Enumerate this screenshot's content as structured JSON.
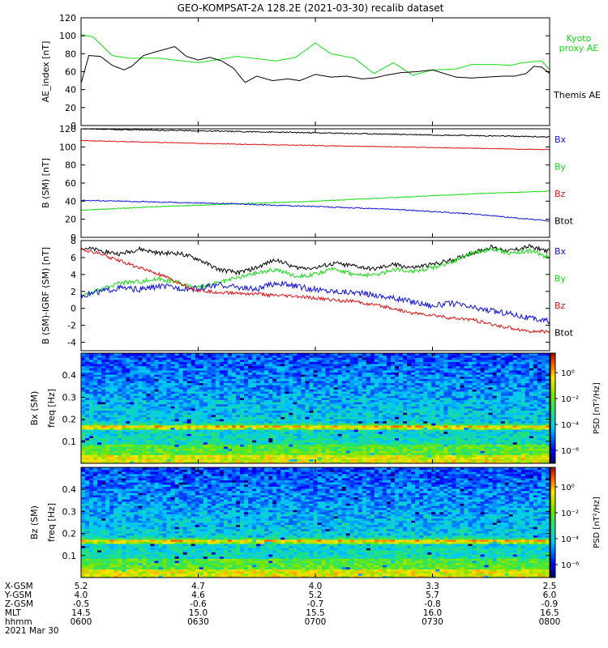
{
  "title": "GEO-KOMPSAT-2A 128.2E (2021-03-30) recalib dataset",
  "colors": {
    "black": "#000000",
    "red": "#e01010",
    "green": "#10dd10",
    "blue": "#1010dd"
  },
  "chart_data": [
    {
      "type": "line",
      "ylabel": "AE_index [nT]",
      "ylim": [
        0,
        120
      ],
      "yticks": [
        "0",
        "20",
        "40",
        "60",
        "80",
        "100",
        "120"
      ],
      "yvals": [
        0,
        20,
        40,
        60,
        80,
        100,
        120
      ],
      "legend": [
        {
          "lines": [
            "Kyoto",
            "proxy AE"
          ],
          "color": "#10dd10"
        },
        {
          "lines": [
            "Themis AE"
          ],
          "color": "#000000"
        }
      ],
      "series": [
        {
          "name": "Kyoto proxy AE",
          "color": "#10dd10",
          "x": [
            0,
            3,
            8,
            12,
            15,
            20,
            30,
            40,
            44,
            50,
            55,
            60,
            64,
            70,
            75,
            80,
            85,
            90,
            96,
            100,
            106,
            110,
            113,
            118,
            120
          ],
          "y": [
            101,
            99,
            78,
            75,
            75,
            75,
            70,
            77,
            75,
            72,
            76,
            92,
            80,
            75,
            58,
            70,
            56,
            62,
            63,
            68,
            68,
            67,
            70,
            72,
            62
          ]
        },
        {
          "name": "Themis AE",
          "color": "#000000",
          "x": [
            0,
            2,
            5,
            8,
            11,
            13,
            16,
            19,
            24,
            27,
            30,
            33,
            36,
            39,
            42,
            45,
            49,
            53,
            56,
            60,
            64,
            68,
            72,
            75,
            78,
            82,
            86,
            90,
            93,
            96,
            100,
            104,
            108,
            111,
            114,
            116,
            118,
            120
          ],
          "y": [
            47,
            78,
            77,
            67,
            62,
            66,
            78,
            82,
            88,
            77,
            73,
            76,
            72,
            64,
            48,
            55,
            50,
            52,
            50,
            57,
            54,
            55,
            52,
            53,
            56,
            59,
            60,
            62,
            58,
            54,
            53,
            54,
            55,
            55,
            58,
            66,
            65,
            58
          ]
        }
      ]
    },
    {
      "type": "line",
      "ylabel": "B (SM) [nT]",
      "ylim": [
        0,
        120
      ],
      "yticks": [
        "0",
        "20",
        "40",
        "60",
        "80",
        "100",
        "120"
      ],
      "yvals": [
        0,
        20,
        40,
        60,
        80,
        100,
        120
      ],
      "legend": [
        {
          "lines": [
            "Bx"
          ],
          "color": "#1010dd"
        },
        {
          "lines": [
            "By"
          ],
          "color": "#10dd10"
        },
        {
          "lines": [
            "Bz"
          ],
          "color": "#e01010"
        },
        {
          "lines": [
            "Btot"
          ],
          "color": "#000000"
        }
      ],
      "series": [
        {
          "name": "Btot",
          "color": "#000000",
          "noise": 0.6,
          "x": [
            0,
            40,
            80,
            120
          ],
          "y": [
            120,
            117,
            114,
            111
          ]
        },
        {
          "name": "Bz",
          "color": "#e01010",
          "noise": 0.4,
          "x": [
            0,
            40,
            80,
            120
          ],
          "y": [
            107,
            103,
            100,
            97
          ]
        },
        {
          "name": "By",
          "color": "#10dd10",
          "noise": 0.4,
          "x": [
            0,
            20,
            40,
            60,
            80,
            100,
            120
          ],
          "y": [
            30,
            34,
            37,
            40,
            44,
            48,
            51
          ]
        },
        {
          "name": "Bx",
          "color": "#1010dd",
          "noise": 0.6,
          "x": [
            0,
            20,
            40,
            60,
            80,
            100,
            120
          ],
          "y": [
            41,
            39,
            37,
            34,
            31,
            26,
            18
          ]
        }
      ]
    },
    {
      "type": "line",
      "ylabel": "B (SM)-IGRF (SM) [nT]",
      "ylim": [
        -5,
        8
      ],
      "yticks": [
        "-4",
        "-2",
        "0",
        "2",
        "4",
        "6",
        "8"
      ],
      "yvals": [
        -4,
        -2,
        0,
        2,
        4,
        6,
        8
      ],
      "legend": [
        {
          "lines": [
            "Bx"
          ],
          "color": "#1010dd"
        },
        {
          "lines": [
            "By"
          ],
          "color": "#10dd10"
        },
        {
          "lines": [
            "Bz"
          ],
          "color": "#e01010"
        },
        {
          "lines": [
            "Btot"
          ],
          "color": "#000000"
        }
      ],
      "series": [
        {
          "name": "Btot",
          "color": "#000000",
          "noise": 0.25,
          "x": [
            0,
            5,
            10,
            15,
            20,
            25,
            30,
            35,
            40,
            45,
            50,
            55,
            60,
            65,
            70,
            75,
            80,
            85,
            90,
            95,
            100,
            105,
            110,
            115,
            120
          ],
          "y": [
            7.2,
            6.8,
            6.4,
            7.0,
            6.5,
            6.5,
            5.8,
            4.6,
            4.2,
            4.8,
            5.8,
            4.8,
            4.8,
            5.3,
            5.0,
            4.6,
            5.2,
            4.8,
            5.2,
            5.7,
            6.5,
            7.2,
            6.8,
            7.3,
            6.7
          ]
        },
        {
          "name": "By",
          "color": "#10dd10",
          "noise": 0.25,
          "x": [
            0,
            5,
            10,
            15,
            20,
            25,
            30,
            35,
            40,
            45,
            50,
            55,
            60,
            65,
            70,
            75,
            80,
            85,
            90,
            95,
            100,
            105,
            110,
            115,
            120
          ],
          "y": [
            1.5,
            2.2,
            3.0,
            3.2,
            3.5,
            3.0,
            2.4,
            3.0,
            3.6,
            4.2,
            4.6,
            3.8,
            4.0,
            4.7,
            4.0,
            3.9,
            4.6,
            4.4,
            4.8,
            5.5,
            6.5,
            7.0,
            6.5,
            6.8,
            6.0
          ]
        },
        {
          "name": "Bx",
          "color": "#1010dd",
          "noise": 0.35,
          "x": [
            0,
            5,
            10,
            15,
            20,
            25,
            30,
            35,
            40,
            45,
            50,
            55,
            60,
            65,
            70,
            75,
            80,
            85,
            90,
            95,
            100,
            105,
            110,
            115,
            120
          ],
          "y": [
            1.5,
            2.0,
            2.4,
            2.2,
            2.6,
            2.4,
            2.3,
            2.8,
            2.5,
            2.2,
            3.0,
            2.6,
            2.2,
            2.0,
            1.9,
            1.6,
            1.2,
            0.8,
            0.3,
            0.6,
            0.1,
            -0.3,
            -0.6,
            -1.2,
            -1.5
          ]
        },
        {
          "name": "Bz",
          "color": "#e01010",
          "noise": 0.2,
          "x": [
            0,
            5,
            10,
            15,
            20,
            25,
            30,
            35,
            40,
            45,
            50,
            55,
            60,
            65,
            70,
            75,
            80,
            85,
            90,
            95,
            100,
            105,
            110,
            115,
            120
          ],
          "y": [
            7.0,
            6.4,
            5.6,
            4.8,
            4.0,
            3.0,
            2.1,
            1.9,
            1.8,
            1.7,
            1.5,
            1.4,
            1.2,
            1.0,
            0.8,
            0.4,
            0.0,
            -0.6,
            -0.8,
            -1.2,
            -1.3,
            -1.9,
            -2.3,
            -2.7,
            -2.8
          ]
        }
      ]
    },
    {
      "type": "heatmap",
      "ylabel": "Bx (SM)",
      "ylabel2": "freq [Hz]",
      "ylim": [
        0,
        0.5
      ],
      "yticks": [
        "0.1",
        "0.2",
        "0.3",
        "0.4"
      ],
      "yvals": [
        0.1,
        0.2,
        0.3,
        0.4
      ],
      "colorbar_label": "PSD [nT²/Hz]",
      "colorbar_ticks": [
        "10⁰",
        "10⁻²",
        "10⁻⁴",
        "10⁻⁶"
      ],
      "colorbar_vals": [
        0,
        -2,
        -4,
        -6
      ],
      "colorbar_range": [
        -7,
        1.5
      ]
    },
    {
      "type": "heatmap",
      "ylabel": "Bz (SM)",
      "ylabel2": "freq [Hz]",
      "ylim": [
        0,
        0.5
      ],
      "yticks": [
        "0.1",
        "0.2",
        "0.3",
        "0.4"
      ],
      "yvals": [
        0.1,
        0.2,
        0.3,
        0.4
      ],
      "colorbar_label": "PSD [nT²/Hz]",
      "colorbar_ticks": [
        "10⁰",
        "10⁻²",
        "10⁻⁴",
        "10⁻⁶"
      ],
      "colorbar_vals": [
        0,
        -2,
        -4,
        -6
      ],
      "colorbar_range": [
        -7,
        1.5
      ]
    }
  ],
  "xaxis": {
    "row_labels": [
      "X-GSM",
      "Y-GSM",
      "Z-GSM",
      "MLT",
      "hhmm",
      "2021 Mar 30"
    ],
    "ticks": [
      {
        "t": 0,
        "vals": [
          "5.2",
          "4.0",
          "-0.5",
          "14.5",
          "0600"
        ]
      },
      {
        "t": 30,
        "vals": [
          "4.7",
          "4.6",
          "-0.6",
          "15.0",
          "0630"
        ]
      },
      {
        "t": 60,
        "vals": [
          "4.0",
          "5.2",
          "-0.7",
          "15.5",
          "0700"
        ]
      },
      {
        "t": 90,
        "vals": [
          "3.3",
          "5.7",
          "-0.8",
          "16.0",
          "0730"
        ]
      },
      {
        "t": 120,
        "vals": [
          "2.5",
          "6.0",
          "-0.9",
          "16.5",
          "0800"
        ]
      }
    ],
    "xlim": [
      0,
      120
    ]
  }
}
